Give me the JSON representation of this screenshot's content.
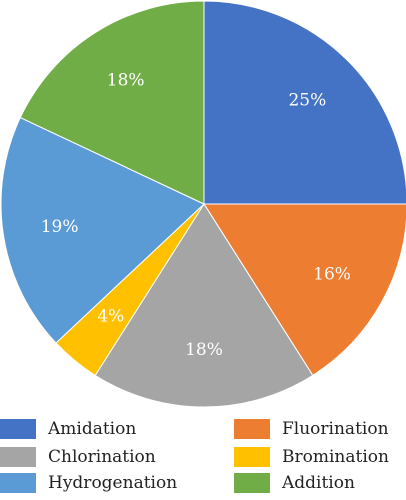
{
  "chart_data": {
    "type": "pie",
    "title": "",
    "slices": [
      {
        "name": "Amidation",
        "value": 25,
        "label": "25%",
        "color": "#4472c4"
      },
      {
        "name": "Fluorination",
        "value": 16,
        "label": "16%",
        "color": "#ed7d31"
      },
      {
        "name": "Chlorination",
        "value": 18,
        "label": "18%",
        "color": "#a5a5a5"
      },
      {
        "name": "Bromination",
        "value": 4,
        "label": "4%",
        "color": "#ffc000"
      },
      {
        "name": "Hydrogenation",
        "value": 19,
        "label": "19%",
        "color": "#5b9bd5"
      },
      {
        "name": "Addition",
        "value": 18,
        "label": "18%",
        "color": "#70ad47"
      }
    ],
    "legend_position": "bottom",
    "legend_order": [
      "Amidation",
      "Fluorination",
      "Chlorination",
      "Bromination",
      "Hydrogenation",
      "Addition"
    ]
  }
}
